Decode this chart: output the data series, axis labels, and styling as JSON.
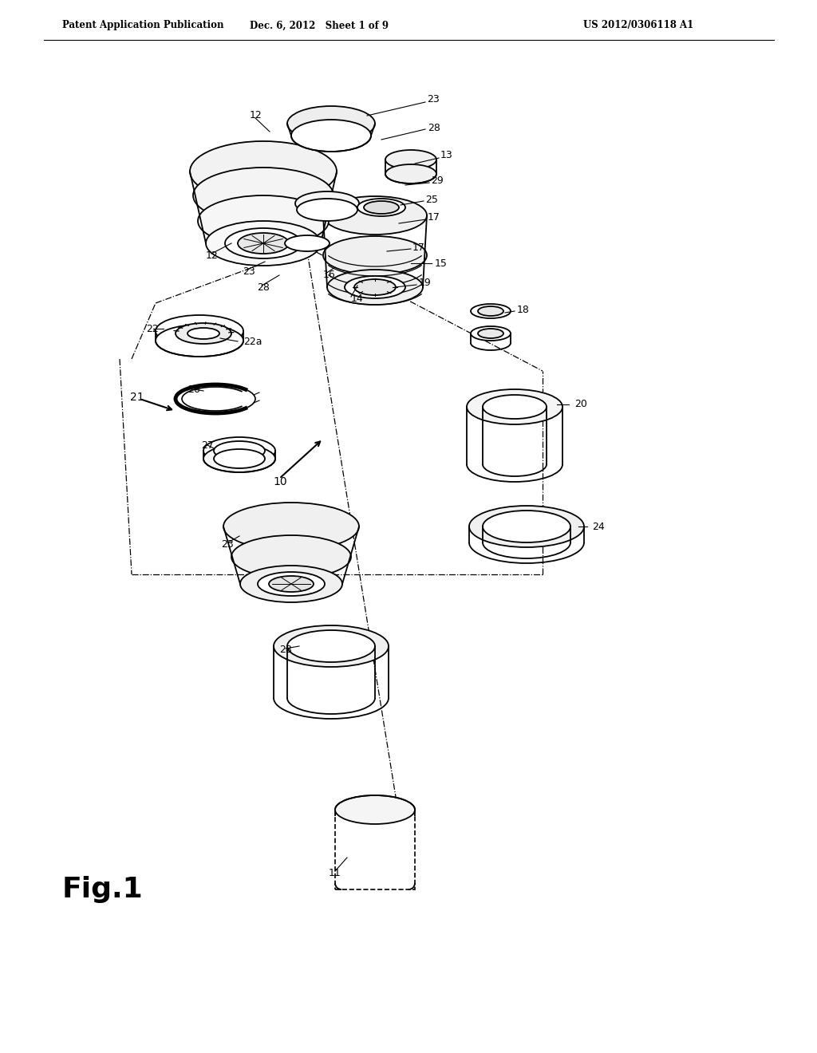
{
  "background_color": "#ffffff",
  "header_left": "Patent Application Publication",
  "header_mid": "Dec. 6, 2012   Sheet 1 of 9",
  "header_right": "US 2012/0306118 A1",
  "fig_label": "Fig.1"
}
